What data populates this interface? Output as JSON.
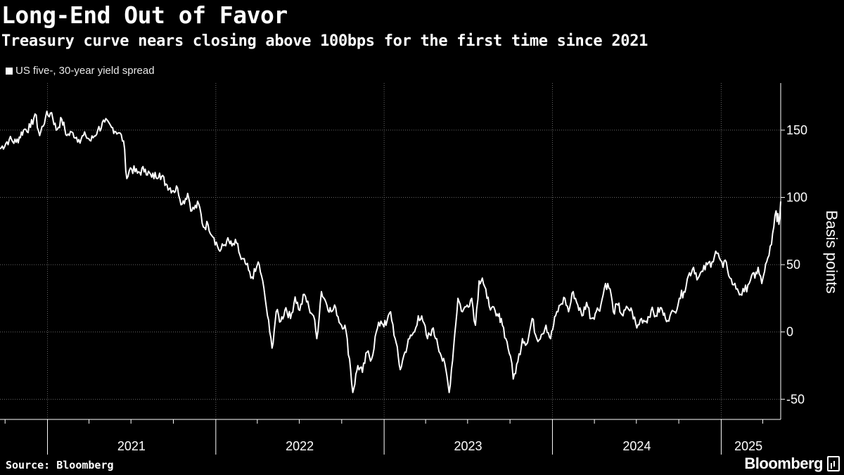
{
  "chart_data": {
    "type": "line",
    "title": "Long-End Out of Favor",
    "subtitle": "Treasury curve nears closing above 100bps for the first time since 2021",
    "ylabel": "Basis points",
    "xlabel": "",
    "ylim": [
      -65,
      185
    ],
    "yticks": [
      -50,
      0,
      50,
      100,
      150
    ],
    "ytick_labels": [
      "-50",
      "0",
      "50",
      "100",
      "150"
    ],
    "xlim": [
      "2020-09-20",
      "2025-05-10"
    ],
    "year_labels": [
      {
        "label": "2021",
        "center": "2021-07-02"
      },
      {
        "label": "2022",
        "center": "2022-07-02"
      },
      {
        "label": "2023",
        "center": "2023-07-02"
      },
      {
        "label": "2024",
        "center": "2024-07-02"
      },
      {
        "label": "2025",
        "center": "2025-03-01"
      }
    ],
    "year_boundaries": [
      "2021-01-01",
      "2022-01-01",
      "2023-01-01",
      "2024-01-01",
      "2025-01-01"
    ],
    "quarter_ticks": [
      "2020-10-01",
      "2021-04-01",
      "2021-07-01",
      "2021-10-01",
      "2022-04-01",
      "2022-07-01",
      "2022-10-01",
      "2023-04-01",
      "2023-07-01",
      "2023-10-01",
      "2024-04-01",
      "2024-07-01",
      "2024-10-01",
      "2025-04-01"
    ],
    "grid": true,
    "legend_position": "top-left",
    "series": [
      {
        "name": "US five-, 30-year yield spread",
        "color": "#ffffff",
        "points": [
          [
            "2020-09-20",
            136
          ],
          [
            "2020-10-10",
            143
          ],
          [
            "2020-10-25",
            141
          ],
          [
            "2020-11-10",
            150
          ],
          [
            "2020-11-25",
            152
          ],
          [
            "2020-12-05",
            162
          ],
          [
            "2020-12-15",
            146
          ],
          [
            "2020-12-28",
            160
          ],
          [
            "2021-01-10",
            163
          ],
          [
            "2021-01-20",
            150
          ],
          [
            "2021-02-01",
            158
          ],
          [
            "2021-02-12",
            146
          ],
          [
            "2021-02-25",
            148
          ],
          [
            "2021-03-10",
            143
          ],
          [
            "2021-03-25",
            146
          ],
          [
            "2021-04-05",
            142
          ],
          [
            "2021-04-20",
            150
          ],
          [
            "2021-05-05",
            156
          ],
          [
            "2021-05-20",
            152
          ],
          [
            "2021-06-05",
            148
          ],
          [
            "2021-06-15",
            142
          ],
          [
            "2021-06-22",
            114
          ],
          [
            "2021-06-30",
            122
          ],
          [
            "2021-07-15",
            118
          ],
          [
            "2021-08-01",
            121
          ],
          [
            "2021-08-15",
            115
          ],
          [
            "2021-09-01",
            118
          ],
          [
            "2021-09-15",
            110
          ],
          [
            "2021-10-01",
            105
          ],
          [
            "2021-10-10",
            107
          ],
          [
            "2021-10-20",
            95
          ],
          [
            "2021-11-01",
            103
          ],
          [
            "2021-11-10",
            90
          ],
          [
            "2021-11-25",
            95
          ],
          [
            "2021-12-05",
            78
          ],
          [
            "2021-12-15",
            80
          ],
          [
            "2021-12-28",
            70
          ],
          [
            "2022-01-10",
            60
          ],
          [
            "2022-01-25",
            68
          ],
          [
            "2022-02-05",
            64
          ],
          [
            "2022-02-15",
            66
          ],
          [
            "2022-02-25",
            54
          ],
          [
            "2022-03-08",
            50
          ],
          [
            "2022-03-18",
            40
          ],
          [
            "2022-03-28",
            45
          ],
          [
            "2022-04-03",
            52
          ],
          [
            "2022-04-10",
            42
          ],
          [
            "2022-04-18",
            25
          ],
          [
            "2022-04-28",
            0
          ],
          [
            "2022-05-03",
            -12
          ],
          [
            "2022-05-12",
            15
          ],
          [
            "2022-05-22",
            8
          ],
          [
            "2022-06-02",
            18
          ],
          [
            "2022-06-12",
            10
          ],
          [
            "2022-06-22",
            26
          ],
          [
            "2022-07-02",
            16
          ],
          [
            "2022-07-12",
            28
          ],
          [
            "2022-07-22",
            18
          ],
          [
            "2022-08-01",
            12
          ],
          [
            "2022-08-08",
            -5
          ],
          [
            "2022-08-18",
            30
          ],
          [
            "2022-08-28",
            22
          ],
          [
            "2022-09-08",
            15
          ],
          [
            "2022-09-18",
            18
          ],
          [
            "2022-09-28",
            6
          ],
          [
            "2022-10-08",
            5
          ],
          [
            "2022-10-18",
            -20
          ],
          [
            "2022-10-25",
            -45
          ],
          [
            "2022-11-05",
            -25
          ],
          [
            "2022-11-15",
            -30
          ],
          [
            "2022-11-25",
            -15
          ],
          [
            "2022-12-05",
            -20
          ],
          [
            "2022-12-15",
            0
          ],
          [
            "2022-12-25",
            8
          ],
          [
            "2023-01-05",
            5
          ],
          [
            "2023-01-15",
            15
          ],
          [
            "2023-01-25",
            -5
          ],
          [
            "2023-02-05",
            -28
          ],
          [
            "2023-02-15",
            -15
          ],
          [
            "2023-02-25",
            -5
          ],
          [
            "2023-03-08",
            0
          ],
          [
            "2023-03-16",
            12
          ],
          [
            "2023-03-26",
            8
          ],
          [
            "2023-04-05",
            -5
          ],
          [
            "2023-04-15",
            2
          ],
          [
            "2023-04-25",
            -5
          ],
          [
            "2023-05-05",
            -18
          ],
          [
            "2023-05-15",
            -28
          ],
          [
            "2023-05-22",
            -45
          ],
          [
            "2023-06-01",
            -10
          ],
          [
            "2023-06-10",
            25
          ],
          [
            "2023-06-20",
            15
          ],
          [
            "2023-06-30",
            20
          ],
          [
            "2023-07-10",
            25
          ],
          [
            "2023-07-18",
            5
          ],
          [
            "2023-07-26",
            38
          ],
          [
            "2023-08-02",
            40
          ],
          [
            "2023-08-12",
            25
          ],
          [
            "2023-08-22",
            18
          ],
          [
            "2023-09-01",
            12
          ],
          [
            "2023-09-12",
            10
          ],
          [
            "2023-09-22",
            -5
          ],
          [
            "2023-10-02",
            -18
          ],
          [
            "2023-10-08",
            -35
          ],
          [
            "2023-10-18",
            -22
          ],
          [
            "2023-10-28",
            -5
          ],
          [
            "2023-11-08",
            -8
          ],
          [
            "2023-11-18",
            10
          ],
          [
            "2023-11-28",
            -5
          ],
          [
            "2023-12-08",
            -2
          ],
          [
            "2023-12-18",
            5
          ],
          [
            "2023-12-28",
            -5
          ],
          [
            "2024-01-08",
            12
          ],
          [
            "2024-01-18",
            20
          ],
          [
            "2024-01-28",
            25
          ],
          [
            "2024-02-05",
            15
          ],
          [
            "2024-02-15",
            30
          ],
          [
            "2024-02-25",
            20
          ],
          [
            "2024-03-05",
            12
          ],
          [
            "2024-03-15",
            22
          ],
          [
            "2024-03-25",
            10
          ],
          [
            "2024-04-05",
            15
          ],
          [
            "2024-04-15",
            20
          ],
          [
            "2024-04-25",
            36
          ],
          [
            "2024-05-05",
            32
          ],
          [
            "2024-05-12",
            15
          ],
          [
            "2024-05-22",
            20
          ],
          [
            "2024-06-02",
            12
          ],
          [
            "2024-06-12",
            18
          ],
          [
            "2024-06-22",
            15
          ],
          [
            "2024-07-02",
            3
          ],
          [
            "2024-07-12",
            10
          ],
          [
            "2024-07-22",
            8
          ],
          [
            "2024-08-02",
            16
          ],
          [
            "2024-08-12",
            12
          ],
          [
            "2024-08-22",
            18
          ],
          [
            "2024-09-02",
            10
          ],
          [
            "2024-09-12",
            12
          ],
          [
            "2024-09-22",
            15
          ],
          [
            "2024-10-02",
            25
          ],
          [
            "2024-10-12",
            30
          ],
          [
            "2024-10-22",
            42
          ],
          [
            "2024-11-02",
            48
          ],
          [
            "2024-11-12",
            40
          ],
          [
            "2024-11-22",
            45
          ],
          [
            "2024-12-02",
            50
          ],
          [
            "2024-12-12",
            52
          ],
          [
            "2024-12-20",
            60
          ],
          [
            "2024-12-28",
            55
          ],
          [
            "2025-01-05",
            48
          ],
          [
            "2025-01-12",
            52
          ],
          [
            "2025-01-20",
            40
          ],
          [
            "2025-01-28",
            35
          ],
          [
            "2025-02-05",
            32
          ],
          [
            "2025-02-12",
            28
          ],
          [
            "2025-02-20",
            30
          ],
          [
            "2025-02-28",
            35
          ],
          [
            "2025-03-08",
            42
          ],
          [
            "2025-03-15",
            40
          ],
          [
            "2025-03-22",
            48
          ],
          [
            "2025-03-30",
            36
          ],
          [
            "2025-04-05",
            45
          ],
          [
            "2025-04-12",
            55
          ],
          [
            "2025-04-20",
            65
          ],
          [
            "2025-04-25",
            78
          ],
          [
            "2025-04-30",
            90
          ],
          [
            "2025-05-02",
            82
          ],
          [
            "2025-05-04",
            88
          ],
          [
            "2025-05-06",
            80
          ],
          [
            "2025-05-10",
            97
          ]
        ]
      }
    ]
  },
  "source": "Source: Bloomberg",
  "brand": "Bloomberg"
}
